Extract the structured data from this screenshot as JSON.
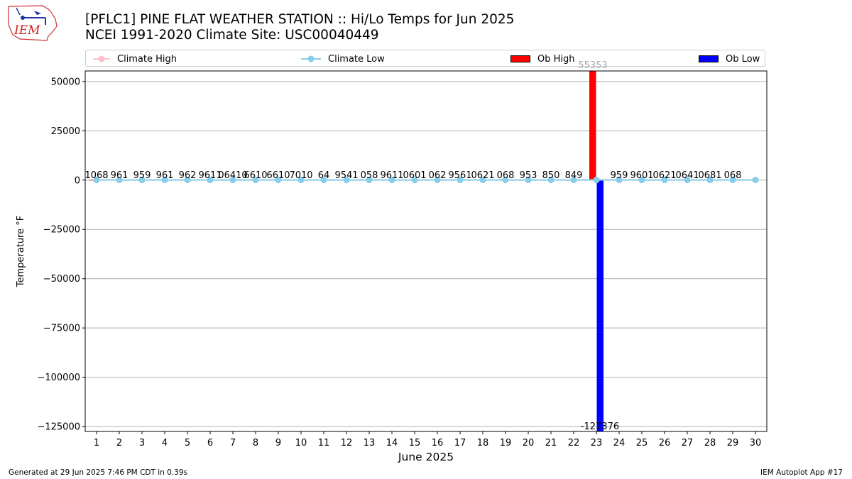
{
  "header": {
    "title_line1": "[PFLC1] PINE FLAT WEATHER STATION :: Hi/Lo Temps for Jun 2025",
    "title_line2": "NCEI 1991-2020 Climate Site: USC00040449"
  },
  "logo": {
    "text": "IEM",
    "icon": "iem-logo-iowa-map"
  },
  "legend": {
    "placement": "top, above plot",
    "items": [
      {
        "label": "Climate High",
        "style": "line-marker",
        "color": "#ffc0cb"
      },
      {
        "label": "Climate Low",
        "style": "line-marker",
        "color": "#87ceeb"
      },
      {
        "label": "Ob High",
        "style": "bar",
        "color": "#ff0000"
      },
      {
        "label": "Ob Low",
        "style": "bar",
        "color": "#0000ff"
      }
    ]
  },
  "footer": {
    "left": "Generated at 29 Jun 2025 7:46 PM CDT in 0.39s",
    "right": "IEM Autoplot App #17"
  },
  "chart_data": {
    "type": "bar",
    "title": "[PFLC1] PINE FLAT WEATHER STATION :: Hi/Lo Temps for Jun 2025",
    "subtitle": "NCEI 1991-2020 Climate Site: USC00040449",
    "xlabel": "June 2025",
    "ylabel": "Temperature °F",
    "ylim": [
      -127500,
      55353
    ],
    "yticks": [
      50000,
      25000,
      0,
      -25000,
      -50000,
      -75000,
      -100000,
      -125000
    ],
    "ytick_labels": [
      "50000",
      "25000",
      "0",
      "−25000",
      "−50000",
      "−75000",
      "−100000",
      "−125000"
    ],
    "grid": "horizontal",
    "categories": [
      "1",
      "2",
      "3",
      "4",
      "5",
      "6",
      "7",
      "8",
      "9",
      "10",
      "11",
      "12",
      "13",
      "14",
      "15",
      "16",
      "17",
      "18",
      "19",
      "20",
      "21",
      "22",
      "23",
      "24",
      "25",
      "26",
      "27",
      "28",
      "29",
      "30"
    ],
    "series": [
      {
        "name": "Ob High",
        "kind": "bar",
        "color": "#ff0000",
        "values": [
          106,
          96,
          95,
          96,
          96,
          96,
          106,
          106,
          106,
          107,
          101,
          95,
          104,
          96,
          110,
          106,
          95,
          106,
          106,
          95,
          85,
          84,
          55353,
          95,
          96,
          101,
          106,
          106,
          106,
          null
        ]
      },
      {
        "name": "Ob Low",
        "kind": "bar",
        "color": "#0000ff",
        "values": [
          68,
          61,
          59,
          61,
          62,
          61,
          64,
          61,
          61,
          70,
          64,
          54,
          58,
          61,
          60,
          62,
          56,
          62,
          68,
          53,
          50,
          49,
          -127376,
          59,
          60,
          62,
          64,
          68,
          68,
          null
        ]
      },
      {
        "name": "Climate High",
        "kind": "line",
        "color": "#ffc0cb",
        "values": [
          92,
          92,
          93,
          93,
          93,
          94,
          94,
          94,
          95,
          95,
          95,
          96,
          96,
          96,
          96,
          97,
          97,
          97,
          97,
          98,
          98,
          98,
          98,
          99,
          99,
          99,
          99,
          99,
          100,
          100
        ]
      },
      {
        "name": "Climate Low",
        "kind": "line",
        "color": "#87ceeb",
        "values": [
          57,
          57,
          57,
          58,
          58,
          58,
          58,
          59,
          59,
          59,
          59,
          60,
          60,
          60,
          60,
          61,
          61,
          61,
          61,
          61,
          62,
          62,
          62,
          62,
          63,
          63,
          63,
          63,
          63,
          64
        ]
      }
    ],
    "bar_labels": [
      "1068",
      "961",
      "959",
      "961",
      "962",
      "9611064",
      "10",
      "6610",
      "6610",
      "7010",
      "64",
      "9541058",
      "10",
      "9611060",
      "1062",
      "9561062",
      "1068",
      "10",
      "953",
      "850",
      "849",
      "55353",
      "-127376",
      "959",
      "9601062",
      "10",
      "6410",
      "6810",
      "68",
      ""
    ],
    "bar_label_text": [
      {
        "day": 1,
        "text": "1068"
      },
      {
        "day": 2,
        "text": "961"
      },
      {
        "day": 3,
        "text": "959"
      },
      {
        "day": 4,
        "text": "961"
      },
      {
        "day": 5,
        "text": "962"
      },
      {
        "day": 6,
        "text": "9611"
      },
      {
        "day": 7,
        "text": "06410"
      },
      {
        "day": 8,
        "text": "6610"
      },
      {
        "day": 9,
        "text": "6610"
      },
      {
        "day": 10,
        "text": "7010"
      },
      {
        "day": 11,
        "text": "64"
      },
      {
        "day": 12,
        "text": "9541"
      },
      {
        "day": 13,
        "text": "058"
      },
      {
        "day": 14,
        "text": "9611"
      },
      {
        "day": 15,
        "text": "0601"
      },
      {
        "day": 16,
        "text": "062"
      },
      {
        "day": 17,
        "text": "9561"
      },
      {
        "day": 18,
        "text": "0621"
      },
      {
        "day": 19,
        "text": "068"
      },
      {
        "day": 20,
        "text": "953"
      },
      {
        "day": 21,
        "text": "850"
      },
      {
        "day": 22,
        "text": "849"
      },
      {
        "day": 24,
        "text": "959"
      },
      {
        "day": 25,
        "text": "9601"
      },
      {
        "day": 26,
        "text": "0621"
      },
      {
        "day": 27,
        "text": "0641"
      },
      {
        "day": 28,
        "text": "0681"
      },
      {
        "day": 29,
        "text": "068"
      }
    ],
    "extreme_labels": {
      "high": "55353",
      "low": "-127376"
    }
  }
}
